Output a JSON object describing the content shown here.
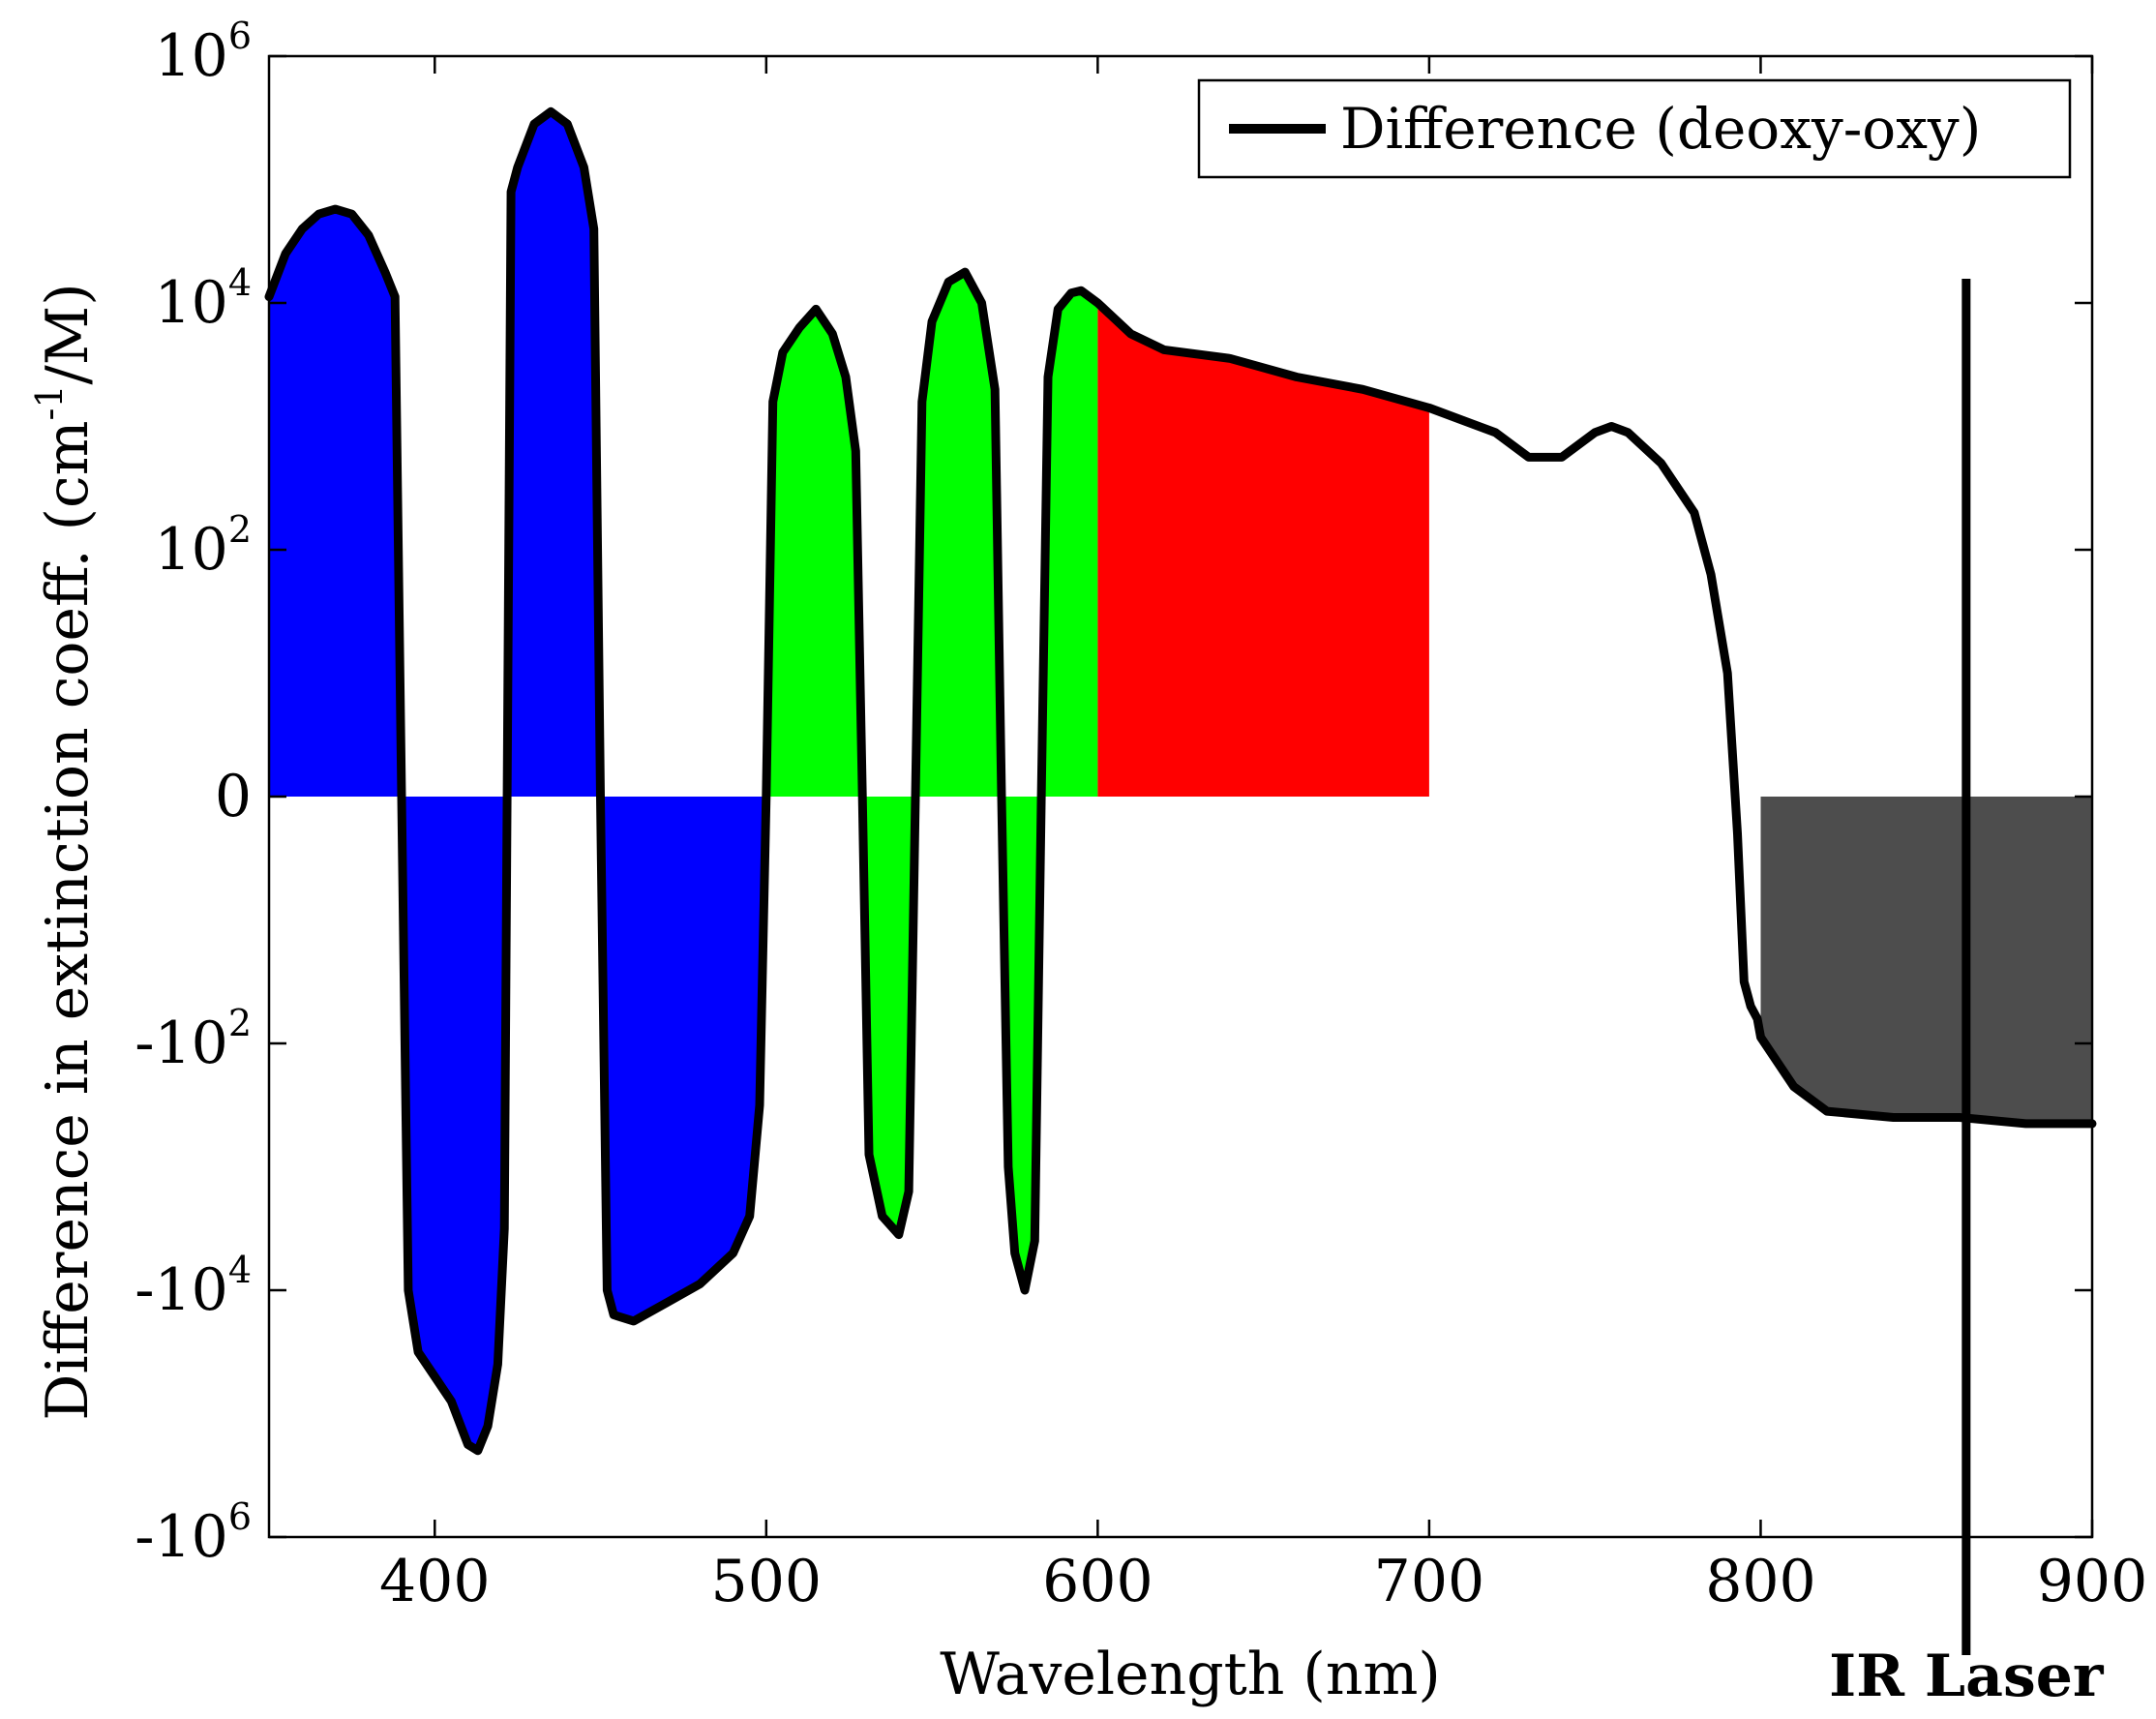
{
  "chart_data": {
    "type": "area",
    "xlabel": "Wavelength (nm)",
    "ylabel": "Difference in extinction coeff. (cm⁻¹/M)",
    "ylabel_parts": [
      "Difference in extinction coeff. (cm",
      "-1",
      "/M)"
    ],
    "xlim": [
      350,
      900
    ],
    "y_scale": "symlog",
    "ylim_exp": [
      -6,
      6
    ],
    "x_ticks": [
      400,
      500,
      600,
      700,
      800,
      900
    ],
    "y_ticks": [
      {
        "value_exp": 6,
        "base": "10",
        "exp": "6",
        "sign": 1
      },
      {
        "value_exp": 4,
        "base": "10",
        "exp": "4",
        "sign": 1
      },
      {
        "value_exp": 2,
        "base": "10",
        "exp": "2",
        "sign": 1
      },
      {
        "value_exp": 0,
        "base": "0",
        "exp": "",
        "sign": 0
      },
      {
        "value_exp": -2,
        "base": "-10",
        "exp": "2",
        "sign": -1
      },
      {
        "value_exp": -4,
        "base": "-10",
        "exp": "4",
        "sign": -1
      },
      {
        "value_exp": -6,
        "base": "-10",
        "exp": "6",
        "sign": -1
      }
    ],
    "series": [
      {
        "name": "Difference (deoxy-oxy)",
        "color": "#000000",
        "x": [
          350,
          355,
          360,
          365,
          370,
          375,
          380,
          385,
          388,
          390,
          392,
          395,
          400,
          405,
          410,
          413,
          416,
          419,
          421,
          423,
          425,
          430,
          435,
          440,
          445,
          448,
          450,
          452,
          454,
          460,
          470,
          480,
          490,
          495,
          498,
          500,
          502,
          505,
          510,
          515,
          520,
          524,
          527,
          529,
          531,
          535,
          540,
          543,
          545,
          547,
          550,
          555,
          560,
          565,
          569,
          571,
          573,
          575,
          578,
          581,
          583,
          585,
          588,
          592,
          595,
          600,
          610,
          620,
          640,
          660,
          680,
          700,
          720,
          730,
          740,
          750,
          755,
          760,
          770,
          780,
          785,
          790,
          793,
          795,
          797,
          799,
          800,
          805,
          810,
          820,
          840,
          860,
          880,
          900
        ],
        "y_exp": [
          4.05,
          4.4,
          4.6,
          4.72,
          4.76,
          4.72,
          4.55,
          4.25,
          4.05,
          0,
          -4.0,
          -4.5,
          -4.7,
          -4.9,
          -5.25,
          -5.3,
          -5.1,
          -4.6,
          -3.5,
          4.9,
          5.1,
          5.45,
          5.55,
          5.45,
          5.1,
          4.6,
          0,
          -4.0,
          -4.2,
          -4.25,
          -4.1,
          -3.95,
          -3.7,
          -3.4,
          -2.5,
          0,
          3.2,
          3.6,
          3.8,
          3.95,
          3.75,
          3.4,
          2.8,
          0,
          -2.9,
          -3.4,
          -3.55,
          -3.2,
          0,
          3.2,
          3.85,
          4.17,
          4.25,
          4.0,
          3.3,
          0,
          -3.0,
          -3.7,
          -4.0,
          -3.6,
          0,
          3.4,
          3.95,
          4.08,
          4.1,
          4.0,
          3.75,
          3.62,
          3.55,
          3.4,
          3.3,
          3.15,
          2.95,
          2.75,
          2.75,
          2.95,
          3.0,
          2.95,
          2.7,
          2.3,
          1.8,
          1.0,
          -0.3,
          -1.5,
          -1.7,
          -1.8,
          -1.95,
          -2.15,
          -2.35,
          -2.55,
          -2.6,
          -2.6,
          -2.65,
          -2.65
        ]
      }
    ],
    "fill_regions": [
      {
        "label": "blue",
        "x_range": [
          350,
          500
        ],
        "color": "#0000ff"
      },
      {
        "label": "green",
        "x_range": [
          500,
          600
        ],
        "color": "#00ff00"
      },
      {
        "label": "red",
        "x_range": [
          600,
          700
        ],
        "color": "#ff0000"
      },
      {
        "label": "near-infrared",
        "x_range": [
          800,
          900
        ],
        "color": "#4d4d4d"
      }
    ],
    "legend": {
      "label": "Difference (deoxy-oxy)",
      "position": "top-right"
    },
    "annotations": [
      {
        "type": "vline",
        "x": 862,
        "label": "IR Laser"
      }
    ]
  }
}
